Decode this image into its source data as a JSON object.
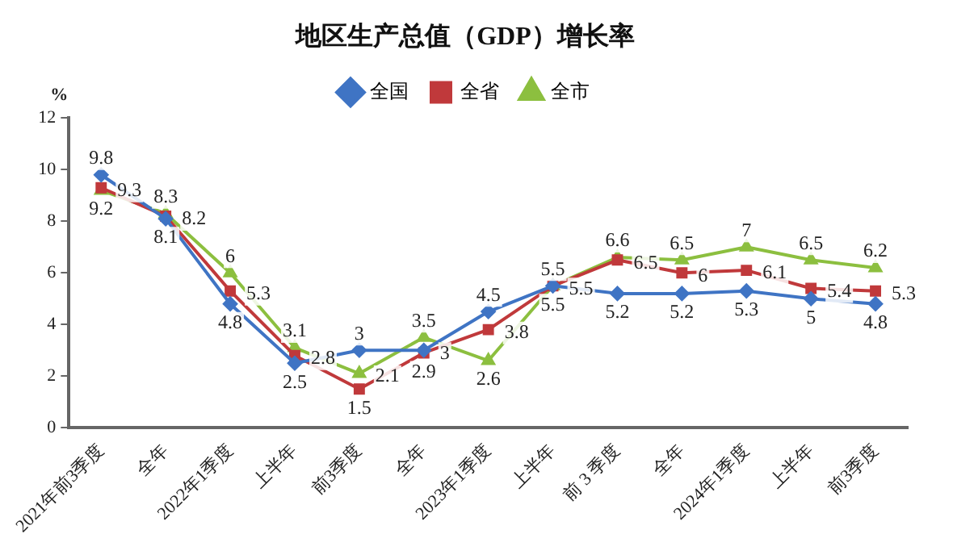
{
  "chart_data": {
    "type": "line",
    "title": "地区生产总值（GDP）增长率",
    "ylabel": "%",
    "categories": [
      "2021年前3季度",
      "全年",
      "2022年1季度",
      "上半年",
      "前3季度",
      "全年",
      "2023年1季度",
      "上半年",
      "前 3 季度",
      "全年",
      "2024年1季度",
      "上半年",
      "前3季度"
    ],
    "series": [
      {
        "name": "全国",
        "color": "#3f74c4",
        "marker": "diamond",
        "values": [
          9.8,
          8.1,
          4.8,
          2.5,
          3,
          3,
          4.5,
          5.5,
          5.2,
          5.2,
          5.3,
          5,
          4.8
        ]
      },
      {
        "name": "全省",
        "color": "#c0393b",
        "marker": "square",
        "values": [
          9.3,
          8.2,
          5.3,
          2.8,
          1.5,
          2.9,
          3.8,
          5.5,
          6.5,
          6,
          6.1,
          5.4,
          5.3
        ]
      },
      {
        "name": "全市",
        "color": "#8cbf3f",
        "marker": "triangle",
        "values": [
          9.2,
          8.3,
          6,
          3.1,
          2.1,
          3.5,
          2.6,
          5.5,
          6.6,
          6.5,
          7,
          6.5,
          6.2
        ]
      }
    ],
    "ylim": [
      0,
      12
    ],
    "yticks": [
      0,
      2,
      4,
      6,
      8,
      10,
      12
    ],
    "grid": false,
    "legend": "top",
    "data_labels": true,
    "line_style": "solid"
  }
}
